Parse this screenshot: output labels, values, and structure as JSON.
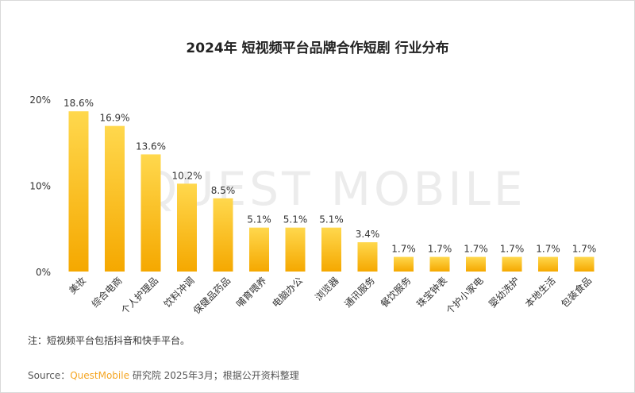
{
  "title": "2024年 短视频平台品牌合作短剧 行业分布",
  "watermark": "QUEST MOBILE",
  "note": "注：短视频平台包括抖音和快手平台。",
  "source": {
    "prefix": "Source：",
    "brand": "QuestMobile",
    "suffix": "研究院 2025年3月；根据公开资料整理"
  },
  "colors": {
    "bar_top": "#ffd84d",
    "bar_bottom": "#f5a800",
    "accent": "#f5a623"
  },
  "chart_data": {
    "type": "bar",
    "title": "2024年 短视频平台品牌合作短剧 行业分布",
    "categories": [
      "美妆",
      "综合电商",
      "个人护理品",
      "饮料冲调",
      "保健品药品",
      "哺育喂养",
      "电脑办公",
      "浏览器",
      "通讯服务",
      "餐饮服务",
      "珠宝钟表",
      "个护小家电",
      "婴幼洗护",
      "本地生活",
      "包装食品"
    ],
    "values": [
      18.6,
      16.9,
      13.6,
      10.2,
      8.5,
      5.1,
      5.1,
      5.1,
      3.4,
      1.7,
      1.7,
      1.7,
      1.7,
      1.7,
      1.7
    ],
    "value_labels": [
      "18.6%",
      "16.9%",
      "13.6%",
      "10.2%",
      "8.5%",
      "5.1%",
      "5.1%",
      "5.1%",
      "3.4%",
      "1.7%",
      "1.7%",
      "1.7%",
      "1.7%",
      "1.7%",
      "1.7%"
    ],
    "yticks": [
      0,
      10,
      20
    ],
    "ytick_labels": [
      "0%",
      "10%",
      "20%"
    ],
    "ylim": [
      0,
      20
    ],
    "grid": false,
    "legend": "none"
  }
}
